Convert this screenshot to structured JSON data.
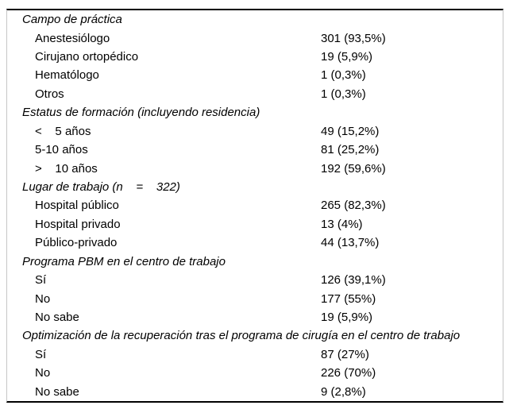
{
  "sections": [
    {
      "header": "Campo de práctica",
      "items": [
        {
          "label": "Anestesiólogo",
          "value": "301 (93,5%)"
        },
        {
          "label": "Cirujano ortopédico",
          "value": "19 (5,9%)"
        },
        {
          "label": "Hematólogo",
          "value": "1 (0,3%)"
        },
        {
          "label": "Otros",
          "value": "1 (0,3%)"
        }
      ]
    },
    {
      "header": "Estatus de formación (incluyendo residencia)",
      "items": [
        {
          "label": "<    5 años",
          "value": "49 (15,2%)"
        },
        {
          "label": "5-10 años",
          "value": "81 (25,2%)"
        },
        {
          "label": ">    10 años",
          "value": "192 (59,6%)"
        }
      ]
    },
    {
      "header": "Lugar de trabajo (n    =    322)",
      "items": [
        {
          "label": "Hospital público",
          "value": "265 (82,3%)"
        },
        {
          "label": "Hospital privado",
          "value": "13 (4%)"
        },
        {
          "label": "Público-privado",
          "value": "44 (13,7%)"
        }
      ]
    },
    {
      "header": "Programa PBM en el centro de trabajo",
      "items": [
        {
          "label": "Sí",
          "value": "126 (39,1%)"
        },
        {
          "label": "No",
          "value": "177 (55%)"
        },
        {
          "label": "No sabe",
          "value": "19 (5,9%)"
        }
      ]
    },
    {
      "header": "Optimización de la recuperación tras el programa de cirugía en el centro de trabajo",
      "items": [
        {
          "label": "Sí",
          "value": "87 (27%)"
        },
        {
          "label": "No",
          "value": "226 (70%)"
        },
        {
          "label": "No sabe",
          "value": "9 (2,8%)"
        }
      ]
    }
  ]
}
